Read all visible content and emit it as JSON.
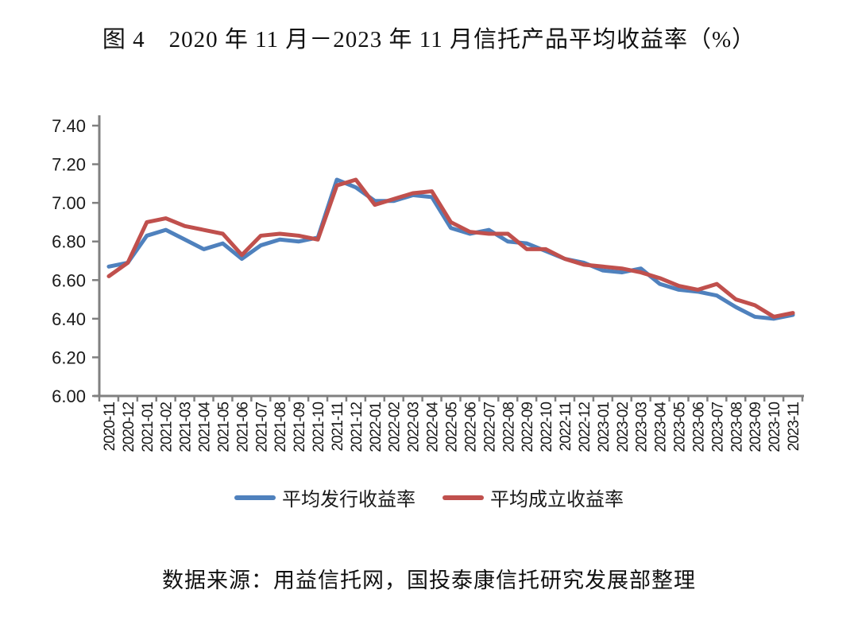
{
  "title": "图 4　2020 年 11 月－2023 年 11 月信托产品平均收益率（%）",
  "source_note": "数据来源：用益信托网，国投泰康信托研究发展部整理",
  "chart_data": {
    "type": "line",
    "title": "图 4　2020 年 11 月－2023 年 11 月信托产品平均收益率（%）",
    "xlabel": "",
    "ylabel": "",
    "ylim": [
      6.0,
      7.4
    ],
    "ytick_step": 0.2,
    "ytick_labels": [
      "6.00",
      "6.20",
      "6.40",
      "6.60",
      "6.80",
      "7.00",
      "7.20",
      "7.40"
    ],
    "grid": false,
    "legend_position": "bottom",
    "axis_color": "#808080",
    "categories": [
      "2020-11",
      "2020-12",
      "2021-01",
      "2021-02",
      "2021-03",
      "2021-04",
      "2021-05",
      "2021-06",
      "2021-07",
      "2021-08",
      "2021-09",
      "2021-10",
      "2021-11",
      "2021-12",
      "2022-01",
      "2022-02",
      "2022-03",
      "2022-04",
      "2022-05",
      "2022-06",
      "2022-07",
      "2022-08",
      "2022-09",
      "2022-10",
      "2022-11",
      "2022-12",
      "2023-01",
      "2023-02",
      "2023-03",
      "2023-04",
      "2023-05",
      "2023-06",
      "2023-07",
      "2023-08",
      "2023-09",
      "2023-10",
      "2023-11"
    ],
    "series": [
      {
        "name": "平均发行收益率",
        "color": "#4f81bd",
        "values": [
          6.67,
          6.69,
          6.83,
          6.86,
          6.81,
          6.76,
          6.79,
          6.71,
          6.78,
          6.81,
          6.8,
          6.82,
          7.12,
          7.08,
          7.01,
          7.01,
          7.04,
          7.03,
          6.87,
          6.84,
          6.86,
          6.8,
          6.79,
          6.75,
          6.71,
          6.69,
          6.65,
          6.64,
          6.66,
          6.58,
          6.55,
          6.54,
          6.52,
          6.46,
          6.41,
          6.4,
          6.42
        ]
      },
      {
        "name": "平均成立收益率",
        "color": "#c0504d",
        "values": [
          6.62,
          6.69,
          6.9,
          6.92,
          6.88,
          6.86,
          6.84,
          6.73,
          6.83,
          6.84,
          6.83,
          6.81,
          7.09,
          7.12,
          6.99,
          7.02,
          7.05,
          7.06,
          6.9,
          6.85,
          6.84,
          6.84,
          6.76,
          6.76,
          6.71,
          6.68,
          6.67,
          6.66,
          6.64,
          6.61,
          6.57,
          6.55,
          6.58,
          6.5,
          6.47,
          6.41,
          6.43
        ]
      }
    ]
  }
}
